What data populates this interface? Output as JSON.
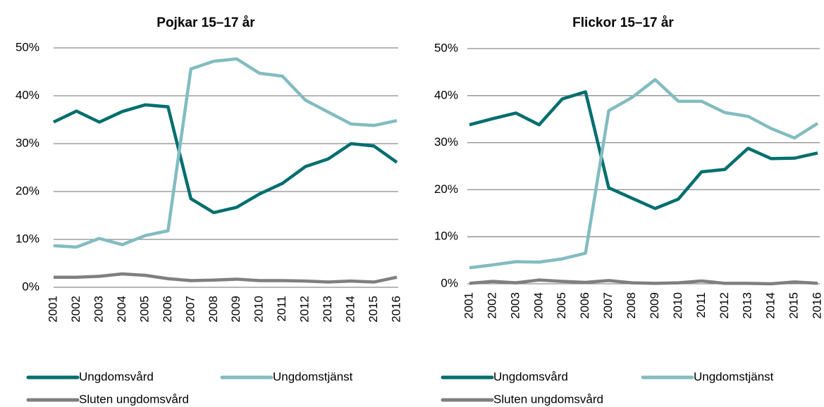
{
  "chart_data": [
    {
      "type": "line",
      "title": "Pojkar 15–17 år",
      "categories": [
        "2001",
        "2002",
        "2003",
        "2004",
        "2005",
        "2006",
        "2007",
        "2008",
        "2009",
        "2010",
        "2011",
        "2012",
        "2013",
        "2014",
        "2015",
        "2016"
      ],
      "series": [
        {
          "name": "Ungdomsvård",
          "color": "#006e6e",
          "values": [
            34.5,
            36.8,
            34.5,
            36.7,
            38.1,
            37.7,
            18.5,
            15.6,
            16.7,
            19.5,
            21.7,
            25.2,
            26.8,
            30.0,
            29.5,
            26.1
          ]
        },
        {
          "name": "Ungdomstjänst",
          "color": "#82bcc0",
          "values": [
            8.7,
            8.4,
            10.2,
            8.9,
            10.8,
            11.8,
            45.6,
            47.2,
            47.7,
            44.7,
            44.1,
            39.1,
            36.6,
            34.1,
            33.8,
            34.8
          ]
        },
        {
          "name": "Sluten ungdomsvård",
          "color": "#7f7f7f",
          "values": [
            2.1,
            2.1,
            2.3,
            2.8,
            2.5,
            1.8,
            1.4,
            1.5,
            1.7,
            1.4,
            1.4,
            1.3,
            1.1,
            1.3,
            1.1,
            2.1
          ]
        }
      ],
      "ylim": [
        0,
        50
      ],
      "yticks": [
        {
          "value": 0,
          "label": "0%"
        },
        {
          "value": 10,
          "label": "10%"
        },
        {
          "value": 20,
          "label": "20%"
        },
        {
          "value": 30,
          "label": "30%"
        },
        {
          "value": 40,
          "label": "40%"
        },
        {
          "value": 50,
          "label": "50%"
        }
      ],
      "grid": true,
      "legend": "bottom"
    },
    {
      "type": "line",
      "title": "Flickor 15–17 år",
      "categories": [
        "2001",
        "2002",
        "2003",
        "2004",
        "2005",
        "2006",
        "2007",
        "2008",
        "2009",
        "2010",
        "2011",
        "2012",
        "2013",
        "2014",
        "2015",
        "2016"
      ],
      "series": [
        {
          "name": "Ungdomsvård",
          "color": "#006e6e",
          "values": [
            33.8,
            35.1,
            36.3,
            33.8,
            39.3,
            40.8,
            20.4,
            18.2,
            16.0,
            18.0,
            23.8,
            24.3,
            28.8,
            26.6,
            26.7,
            27.8
          ]
        },
        {
          "name": "Ungdomstjänst",
          "color": "#82bcc0",
          "values": [
            3.4,
            4.0,
            4.7,
            4.6,
            5.3,
            6.5,
            36.8,
            39.6,
            43.4,
            38.8,
            38.8,
            36.4,
            35.6,
            33.0,
            31.0,
            34.1
          ]
        },
        {
          "name": "Sluten ungdomsvård",
          "color": "#7f7f7f",
          "values": [
            0.1,
            0.5,
            0.2,
            0.8,
            0.5,
            0.3,
            0.7,
            0.2,
            0.1,
            0.2,
            0.6,
            0.1,
            0.1,
            0.0,
            0.4,
            0.1
          ]
        }
      ],
      "ylim": [
        0,
        50
      ],
      "yticks": [
        {
          "value": 0,
          "label": "0%"
        },
        {
          "value": 10,
          "label": "10%"
        },
        {
          "value": 20,
          "label": "20%"
        },
        {
          "value": 30,
          "label": "30%"
        },
        {
          "value": 40,
          "label": "40%"
        },
        {
          "value": 50,
          "label": "50%"
        }
      ],
      "grid": true,
      "legend": "bottom"
    }
  ]
}
